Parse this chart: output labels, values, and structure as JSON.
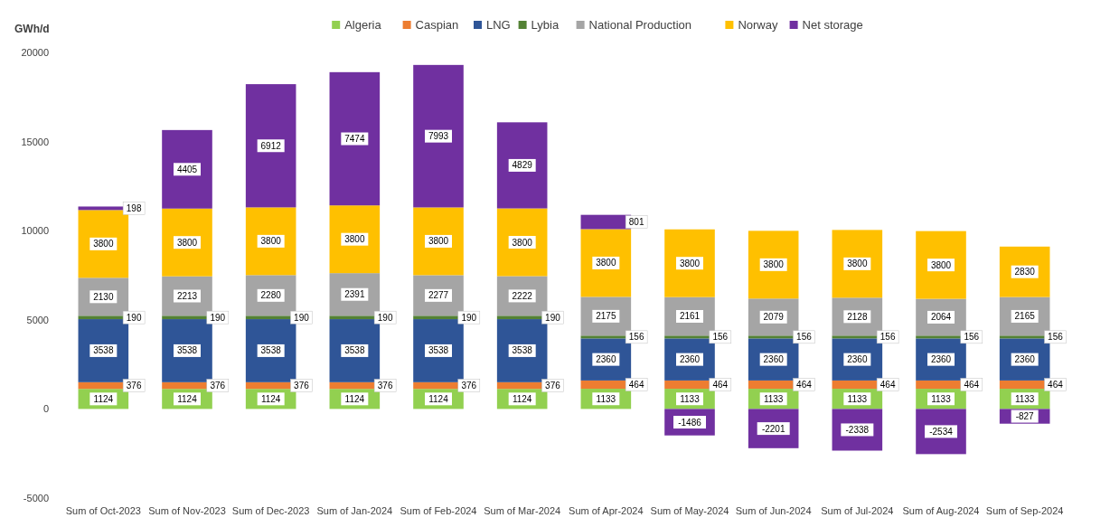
{
  "chart_data": {
    "type": "bar",
    "stacked": true,
    "ylabel": "GWh/d",
    "ylim": [
      -5000,
      20000
    ],
    "yticks": [
      -5000,
      0,
      5000,
      10000,
      15000,
      20000
    ],
    "grid": false,
    "legend": "top",
    "data_labels": true,
    "categories": [
      "Sum of Oct-2023",
      "Sum of Nov-2023",
      "Sum of Dec-2023",
      "Sum of Jan-2024",
      "Sum of Feb-2024",
      "Sum of Mar-2024",
      "Sum of Apr-2024",
      "Sum of May-2024",
      "Sum of Jun-2024",
      "Sum of Jul-2024",
      "Sum of Aug-2024",
      "Sum of Sep-2024"
    ],
    "series": [
      {
        "name": "Algeria",
        "color": "#92d050",
        "values": [
          1124,
          1124,
          1124,
          1124,
          1124,
          1124,
          1133,
          1133,
          1133,
          1133,
          1133,
          1133
        ]
      },
      {
        "name": "Caspian",
        "color": "#ed7d31",
        "values": [
          376,
          376,
          376,
          376,
          376,
          376,
          464,
          464,
          464,
          464,
          464,
          464
        ]
      },
      {
        "name": "LNG",
        "color": "#2f5597",
        "values": [
          3538,
          3538,
          3538,
          3538,
          3538,
          3538,
          2360,
          2360,
          2360,
          2360,
          2360,
          2360
        ]
      },
      {
        "name": "Lybia",
        "color": "#548235",
        "values": [
          190,
          190,
          190,
          190,
          190,
          190,
          156,
          156,
          156,
          156,
          156,
          156
        ]
      },
      {
        "name": "National Production",
        "color": "#a5a5a5",
        "values": [
          2130,
          2213,
          2280,
          2391,
          2277,
          2222,
          2175,
          2161,
          2079,
          2128,
          2064,
          2165
        ]
      },
      {
        "name": "Norway",
        "color": "#ffc000",
        "values": [
          3800,
          3800,
          3800,
          3800,
          3800,
          3800,
          3800,
          3800,
          3800,
          3800,
          3800,
          2830
        ]
      },
      {
        "name": "Net storage",
        "color": "#7030a0",
        "values": [
          198,
          4405,
          6912,
          7474,
          7993,
          4829,
          801,
          -1486,
          -2201,
          -2338,
          -2534,
          -827
        ]
      }
    ]
  }
}
